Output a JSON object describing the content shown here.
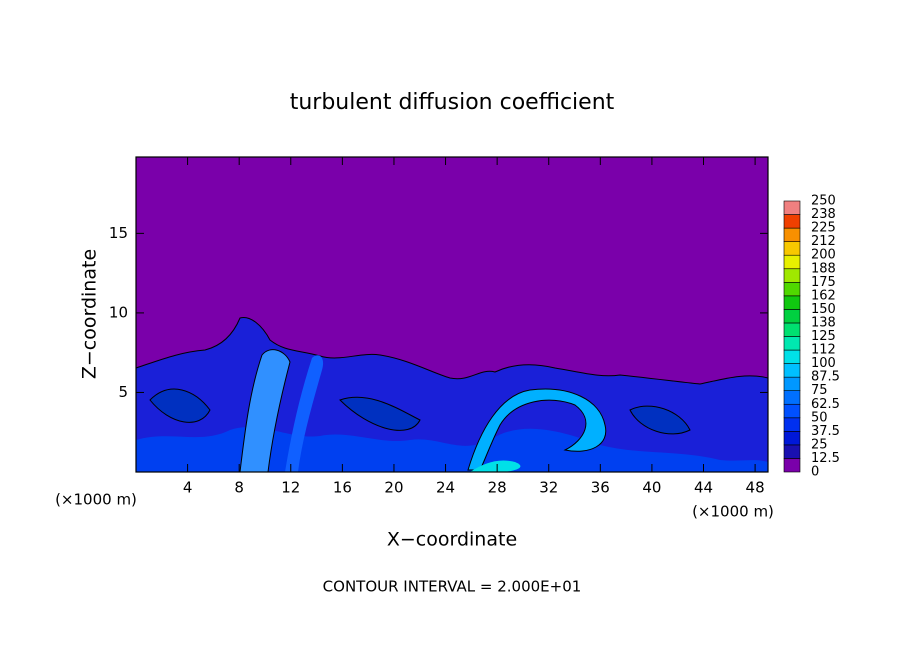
{
  "chart_data": {
    "type": "contour",
    "title": "turbulent diffusion coefficient",
    "x_label": "X−coordinate",
    "y_label": "Z−coordinate",
    "x_units": "(×1000 m)",
    "footer": "CONTOUR INTERVAL = 2.000E+01",
    "xlim": [
      0,
      49
    ],
    "ylim": [
      0,
      19.8
    ],
    "xticks": [
      4,
      8,
      12,
      16,
      20,
      24,
      28,
      32,
      36,
      40,
      44,
      48
    ],
    "yticks": [
      5,
      10,
      15
    ],
    "colorbar": {
      "ticks": [
        0,
        12.5,
        25,
        37.5,
        50,
        62.5,
        75,
        87.5,
        100,
        112,
        125,
        138,
        150,
        162,
        175,
        188,
        200,
        212,
        225,
        238,
        250
      ],
      "colors": [
        "#7a00aa",
        "#1a10b0",
        "#0018d8",
        "#0030f0",
        "#0050ff",
        "#0070ff",
        "#0098ff",
        "#00c0ff",
        "#00e0e8",
        "#00e8b0",
        "#00e070",
        "#00d040",
        "#10c810",
        "#50d800",
        "#a0e800",
        "#e8f000",
        "#f8c800",
        "#f89000",
        "#f04000",
        "#f08080"
      ]
    }
  }
}
